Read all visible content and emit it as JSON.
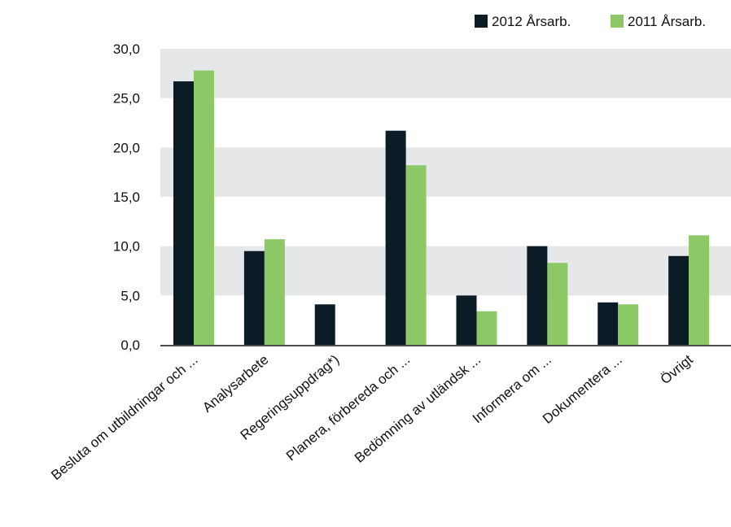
{
  "chart_data": {
    "type": "bar",
    "categories": [
      "Besluta om utbildningar och ...",
      "Analysarbete",
      "Regeringsuppdrag*)",
      "Planera, förbereda och ...",
      "Bedömning av utländsk ...",
      "Informera om ...",
      "Dokumentera ...",
      "Övrigt"
    ],
    "series": [
      {
        "name": "2012 Årsarb.",
        "color": "#0b1c26",
        "values": [
          26.7,
          9.5,
          4.1,
          21.7,
          5.0,
          10.0,
          4.3,
          9.0
        ]
      },
      {
        "name": "2011 Årsarb.",
        "color": "#8cc866",
        "values": [
          27.8,
          10.7,
          0,
          18.2,
          3.4,
          8.3,
          4.1,
          11.1
        ]
      }
    ],
    "yticks": [
      "0,0",
      "5,0",
      "10,0",
      "15,0",
      "20,0",
      "25,0",
      "30,0"
    ],
    "ylim": [
      0,
      30
    ],
    "legend_position": "top-right",
    "grid": "alternating horizontal bands"
  }
}
